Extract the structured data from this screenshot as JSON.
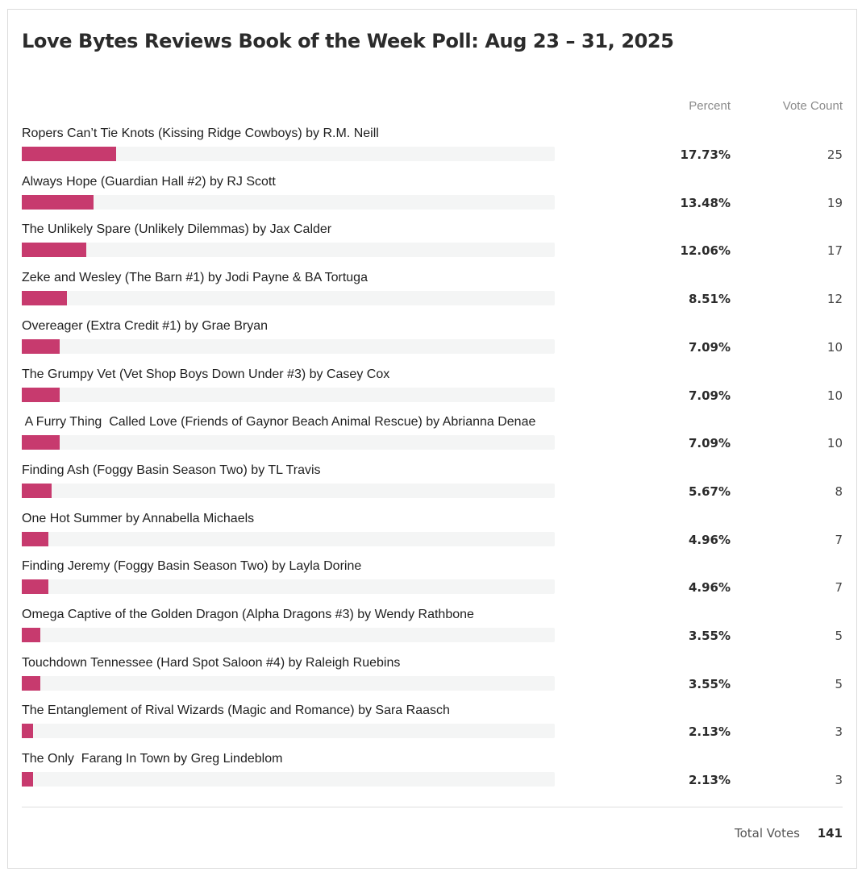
{
  "poll": {
    "title": "Love Bytes Reviews Book of the Week Poll: Aug 23 – 31, 2025",
    "column_percent": "Percent",
    "column_votes": "Vote Count",
    "accent_color": "#c73a6e",
    "total_label": "Total Votes",
    "total_value": "141",
    "options": [
      {
        "label": "Ropers Can’t Tie Knots (Kissing Ridge Cowboys) by R.M. Neill",
        "percent": "17.73%",
        "votes": "25",
        "fraction": 0.1773
      },
      {
        "label": "Always Hope (Guardian Hall #2) by RJ Scott",
        "percent": "13.48%",
        "votes": "19",
        "fraction": 0.1348
      },
      {
        "label": "The Unlikely Spare (Unlikely Dilemmas) by Jax Calder",
        "percent": "12.06%",
        "votes": "17",
        "fraction": 0.1206
      },
      {
        "label": "Zeke and Wesley (The Barn #1) by Jodi Payne & BA Tortuga",
        "percent": "8.51%",
        "votes": "12",
        "fraction": 0.0851
      },
      {
        "label": "Overeager (Extra Credit #1) by Grae Bryan",
        "percent": "7.09%",
        "votes": "10",
        "fraction": 0.0709
      },
      {
        "label": "The Grumpy Vet (Vet Shop Boys Down Under #3) by Casey Cox",
        "percent": "7.09%",
        "votes": "10",
        "fraction": 0.0709
      },
      {
        "label": " A Furry Thing  Called Love (Friends of Gaynor Beach Animal Rescue) by Abrianna Denae",
        "percent": "7.09%",
        "votes": "10",
        "fraction": 0.0709
      },
      {
        "label": "Finding Ash (Foggy Basin Season Two) by TL Travis",
        "percent": "5.67%",
        "votes": "8",
        "fraction": 0.0567
      },
      {
        "label": "One Hot Summer by Annabella Michaels",
        "percent": "4.96%",
        "votes": "7",
        "fraction": 0.0496
      },
      {
        "label": "Finding Jeremy (Foggy Basin Season Two) by Layla Dorine",
        "percent": "4.96%",
        "votes": "7",
        "fraction": 0.0496
      },
      {
        "label": "Omega Captive of the Golden Dragon (Alpha Dragons #3) by Wendy Rathbone",
        "percent": "3.55%",
        "votes": "5",
        "fraction": 0.0355
      },
      {
        "label": "Touchdown Tennessee (Hard Spot Saloon #4) by Raleigh Ruebins",
        "percent": "3.55%",
        "votes": "5",
        "fraction": 0.0355
      },
      {
        "label": "The Entanglement of Rival Wizards (Magic and Romance) by Sara Raasch",
        "percent": "2.13%",
        "votes": "3",
        "fraction": 0.0213
      },
      {
        "label": "The Only  Farang In Town by Greg Lindeblom",
        "percent": "2.13%",
        "votes": "3",
        "fraction": 0.0213
      }
    ]
  }
}
